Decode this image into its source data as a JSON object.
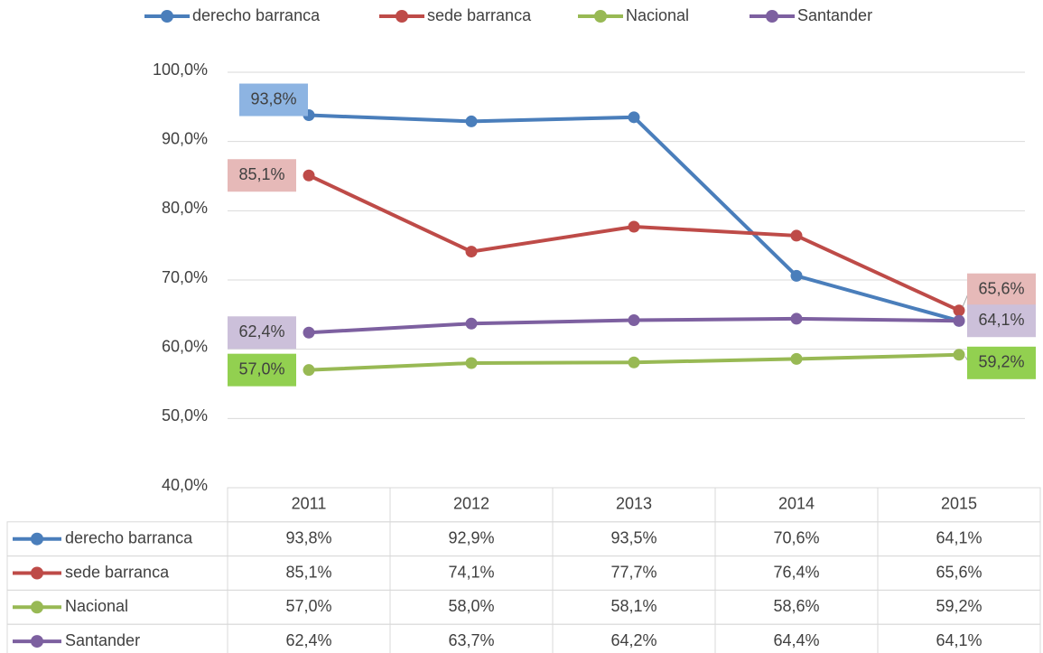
{
  "chart_data": {
    "type": "line",
    "categories": [
      "2011",
      "2012",
      "2013",
      "2014",
      "2015"
    ],
    "series": [
      {
        "name": "derecho barranca",
        "color": "#4a7ebb",
        "values": [
          93.8,
          92.9,
          93.5,
          70.6,
          64.1
        ],
        "value_labels": [
          "93,8%",
          "92,9%",
          "93,5%",
          "70,6%",
          "64,1%"
        ]
      },
      {
        "name": "sede barranca",
        "color": "#be4b48",
        "values": [
          85.1,
          74.1,
          77.7,
          76.4,
          65.6
        ],
        "value_labels": [
          "85,1%",
          "74,1%",
          "77,7%",
          "76,4%",
          "65,6%"
        ]
      },
      {
        "name": "Nacional",
        "color": "#98b954",
        "values": [
          57.0,
          58.0,
          58.1,
          58.6,
          59.2
        ],
        "value_labels": [
          "57,0%",
          "58,0%",
          "58,1%",
          "58,6%",
          "59,2%"
        ]
      },
      {
        "name": "Santander",
        "color": "#7d60a0",
        "values": [
          62.4,
          63.7,
          64.2,
          64.4,
          64.1
        ],
        "value_labels": [
          "62,4%",
          "63,7%",
          "64,2%",
          "64,4%",
          "64,1%"
        ]
      }
    ],
    "ylim": [
      40,
      100
    ],
    "yticks": [
      {
        "value": 40,
        "label": "40,0%"
      },
      {
        "value": 50,
        "label": "50,0%"
      },
      {
        "value": 60,
        "label": "60,0%"
      },
      {
        "value": 70,
        "label": "70,0%"
      },
      {
        "value": 80,
        "label": "80,0%"
      },
      {
        "value": 90,
        "label": "90,0%"
      },
      {
        "value": 100,
        "label": "100,0%"
      }
    ],
    "grid": true,
    "legend": "top",
    "data_table": true
  }
}
